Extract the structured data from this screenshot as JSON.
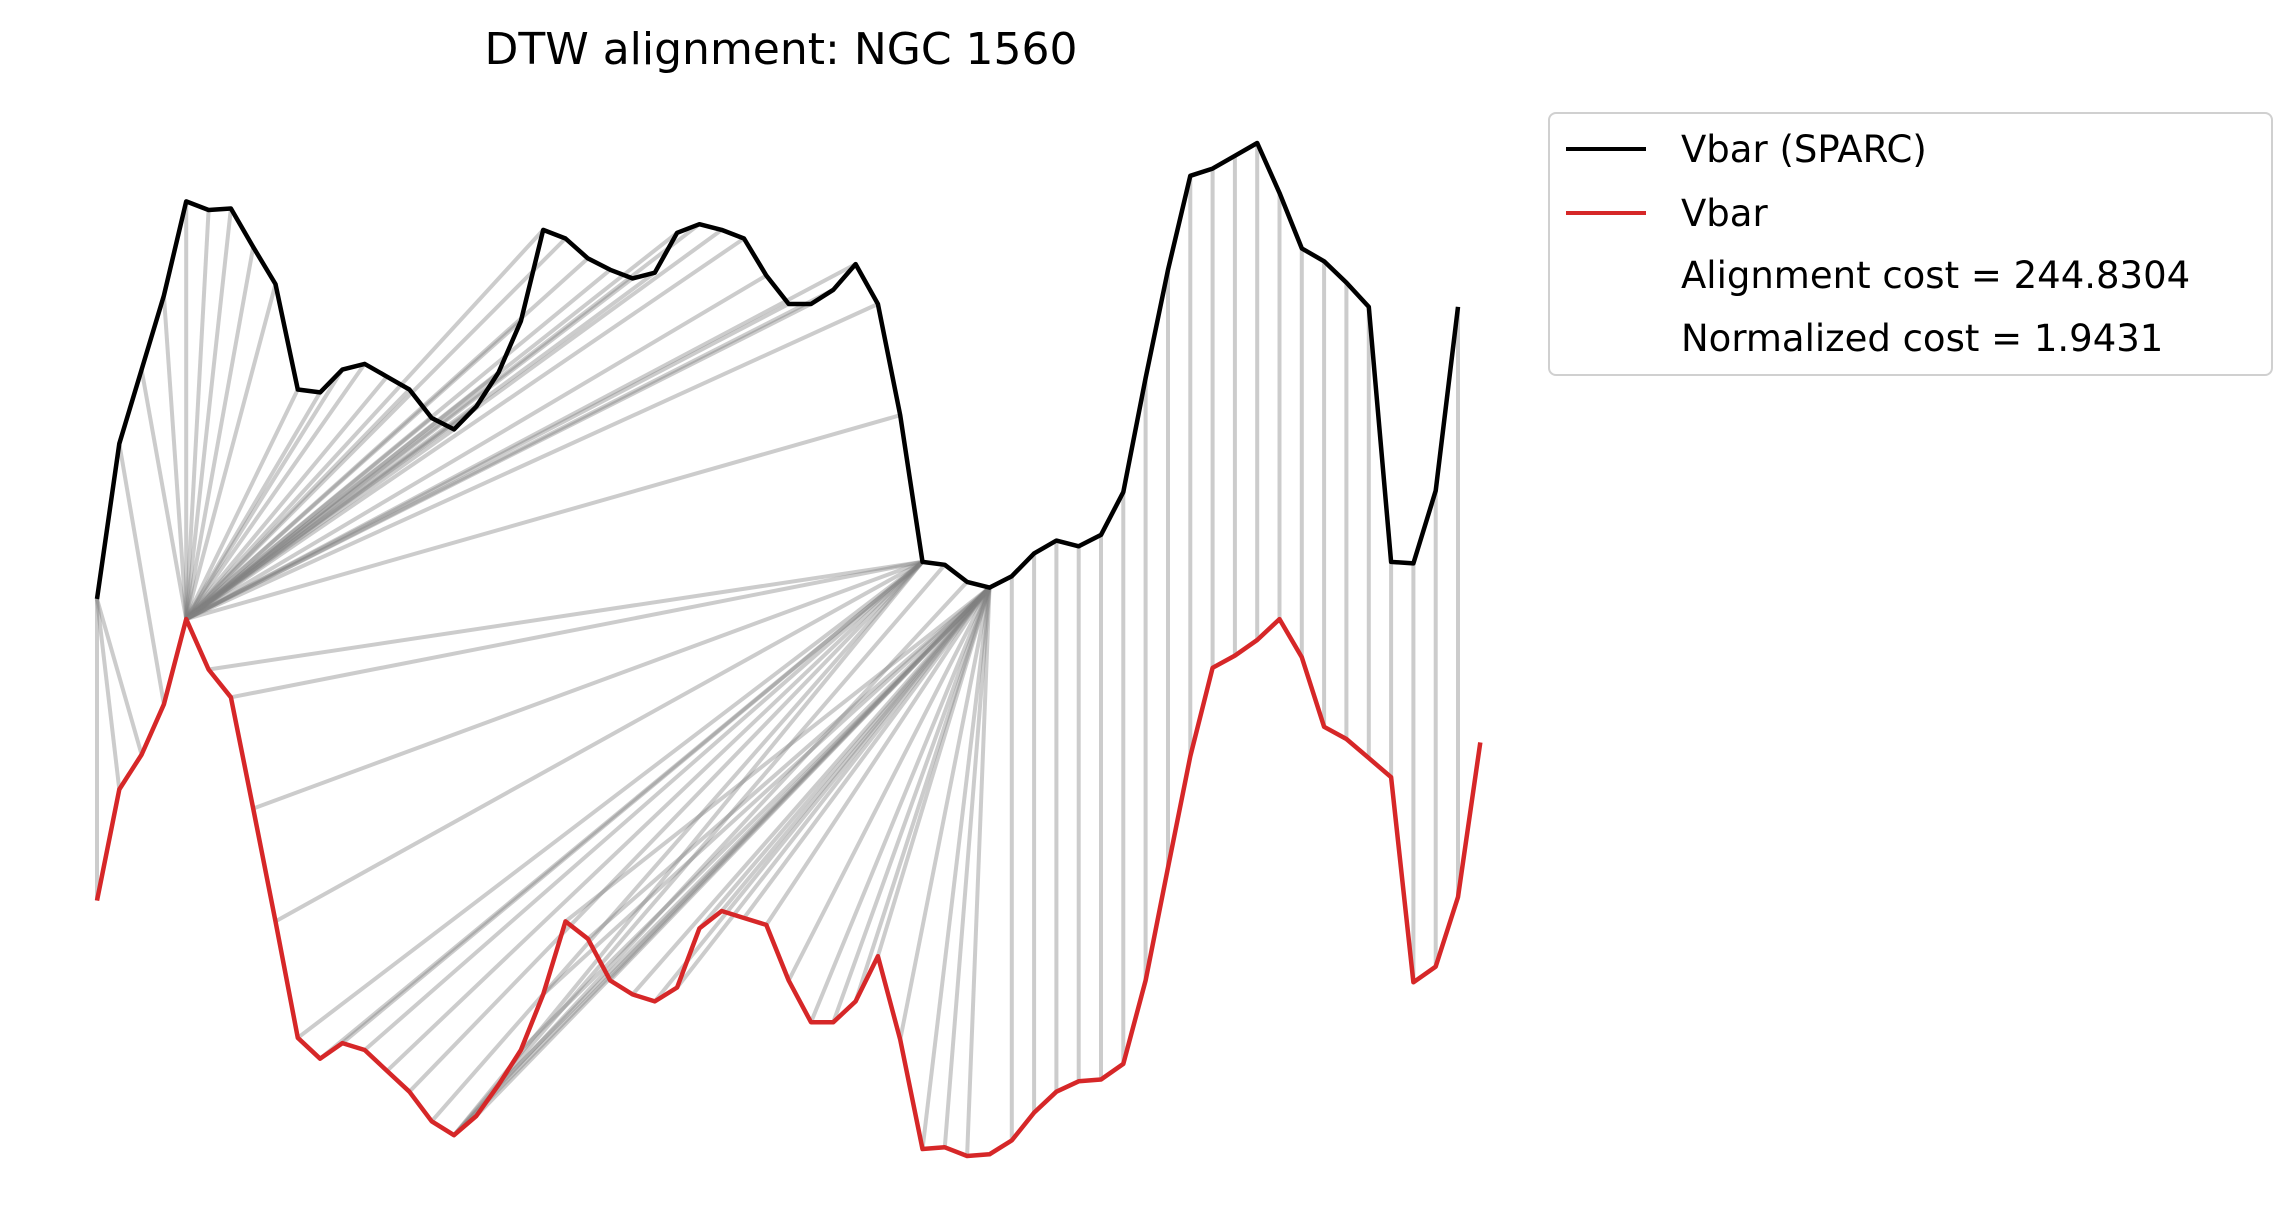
{
  "chart_data": {
    "type": "line",
    "title": "DTW alignment: NGC 1560",
    "axes_visible": false,
    "grid": false,
    "legend_placement": "outside top-right",
    "series": [
      {
        "name": "Vbar (SPARC)",
        "color": "#000000",
        "values": [
          0,
          0.3406,
          0.5031,
          0.6656,
          0.8719,
          0.8531,
          0.8563,
          0.7719,
          0.6906,
          0.4594,
          0.4531,
          0.5031,
          0.5156,
          0.4875,
          0.4594,
          0.3969,
          0.3719,
          0.4219,
          0.4969,
          0.6094,
          0.8094,
          0.7906,
          0.7469,
          0.7219,
          0.7031,
          0.7156,
          0.8031,
          0.8219,
          0.8094,
          0.7906,
          0.7094,
          0.6469,
          0.6469,
          0.6781,
          0.7344,
          0.6469,
          0.4031,
          0.0813,
          0.075,
          0.0375,
          0.025,
          0.05,
          0.1,
          0.1281,
          0.1156,
          0.1406,
          0.2344,
          0.4844,
          0.7219,
          0.9281,
          0.9438,
          0.9719,
          1.0,
          0.8906,
          0.7688,
          0.7406,
          0.6938,
          0.6406,
          0.0813,
          0.0781,
          0.2375,
          0.6406
        ]
      },
      {
        "name": "Vbar",
        "color": "#d62728",
        "values": [
          0.4594,
          0.6594,
          0.7219,
          0.8125,
          0.9656,
          0.875,
          0.825,
          0.625,
          0.4219,
          0.2125,
          0.175,
          0.2031,
          0.1906,
          0.1531,
          0.1156,
          0.0625,
          0.0375,
          0.0719,
          0.1281,
          0.1906,
          0.2906,
          0.4219,
          0.3906,
          0.3156,
          0.2906,
          0.2781,
          0.3031,
          0.4094,
          0.4406,
          0.4281,
          0.4156,
          0.3156,
          0.2406,
          0.2406,
          0.2781,
          0.3594,
          0.2094,
          0.0125,
          0.0156,
          0,
          0.0031,
          0.0281,
          0.0781,
          0.1156,
          0.1344,
          0.1375,
          0.1656,
          0.3156,
          0.5188,
          0.7188,
          0.8781,
          0.9,
          0.9281,
          0.9656,
          0.8969,
          0.7719,
          0.75,
          0.7156,
          0.6813,
          0.3125,
          0.3406,
          0.4656,
          0.7438
        ]
      }
    ],
    "alignment_path": [
      [
        0,
        0
      ],
      [
        0,
        1
      ],
      [
        0,
        2
      ],
      [
        1,
        3
      ],
      [
        2,
        4
      ],
      [
        3,
        4
      ],
      [
        4,
        4
      ],
      [
        5,
        4
      ],
      [
        6,
        4
      ],
      [
        7,
        4
      ],
      [
        8,
        4
      ],
      [
        9,
        4
      ],
      [
        10,
        4
      ],
      [
        11,
        4
      ],
      [
        12,
        4
      ],
      [
        13,
        4
      ],
      [
        14,
        4
      ],
      [
        15,
        4
      ],
      [
        16,
        4
      ],
      [
        17,
        4
      ],
      [
        18,
        4
      ],
      [
        19,
        4
      ],
      [
        20,
        4
      ],
      [
        21,
        4
      ],
      [
        22,
        4
      ],
      [
        23,
        4
      ],
      [
        24,
        4
      ],
      [
        25,
        4
      ],
      [
        26,
        4
      ],
      [
        27,
        4
      ],
      [
        28,
        4
      ],
      [
        29,
        4
      ],
      [
        30,
        4
      ],
      [
        31,
        4
      ],
      [
        32,
        4
      ],
      [
        33,
        4
      ],
      [
        34,
        4
      ],
      [
        35,
        4
      ],
      [
        36,
        4
      ],
      [
        37,
        5
      ],
      [
        37,
        6
      ],
      [
        37,
        7
      ],
      [
        37,
        8
      ],
      [
        37,
        9
      ],
      [
        37,
        10
      ],
      [
        37,
        11
      ],
      [
        37,
        12
      ],
      [
        37,
        13
      ],
      [
        37,
        14
      ],
      [
        37,
        15
      ],
      [
        37,
        16
      ],
      [
        38,
        16
      ],
      [
        39,
        16
      ],
      [
        40,
        16
      ],
      [
        40,
        17
      ],
      [
        40,
        18
      ],
      [
        40,
        19
      ],
      [
        40,
        20
      ],
      [
        40,
        21
      ],
      [
        40,
        22
      ],
      [
        40,
        23
      ],
      [
        40,
        24
      ],
      [
        40,
        25
      ],
      [
        40,
        26
      ],
      [
        40,
        27
      ],
      [
        40,
        28
      ],
      [
        40,
        29
      ],
      [
        40,
        30
      ],
      [
        40,
        31
      ],
      [
        40,
        32
      ],
      [
        40,
        33
      ],
      [
        40,
        34
      ],
      [
        40,
        35
      ],
      [
        40,
        36
      ],
      [
        40,
        37
      ],
      [
        40,
        38
      ],
      [
        40,
        39
      ],
      [
        41,
        41
      ],
      [
        42,
        42
      ],
      [
        43,
        43
      ],
      [
        44,
        44
      ],
      [
        45,
        45
      ],
      [
        46,
        46
      ],
      [
        47,
        47
      ],
      [
        48,
        48
      ],
      [
        49,
        49
      ],
      [
        50,
        50
      ],
      [
        51,
        51
      ],
      [
        52,
        52
      ],
      [
        53,
        53
      ],
      [
        54,
        54
      ],
      [
        55,
        55
      ],
      [
        56,
        56
      ],
      [
        57,
        57
      ],
      [
        58,
        58
      ],
      [
        59,
        59
      ],
      [
        60,
        60
      ],
      [
        61,
        61
      ]
    ],
    "legend_entries": [
      {
        "label": "Vbar (SPARC)",
        "kind": "line",
        "color": "#000000"
      },
      {
        "label": "Vbar",
        "kind": "line",
        "color": "#d62728"
      },
      {
        "label": "Alignment cost = 244.8304",
        "kind": "text"
      },
      {
        "label": "Normalized cost = 1.9431",
        "kind": "text"
      }
    ]
  }
}
